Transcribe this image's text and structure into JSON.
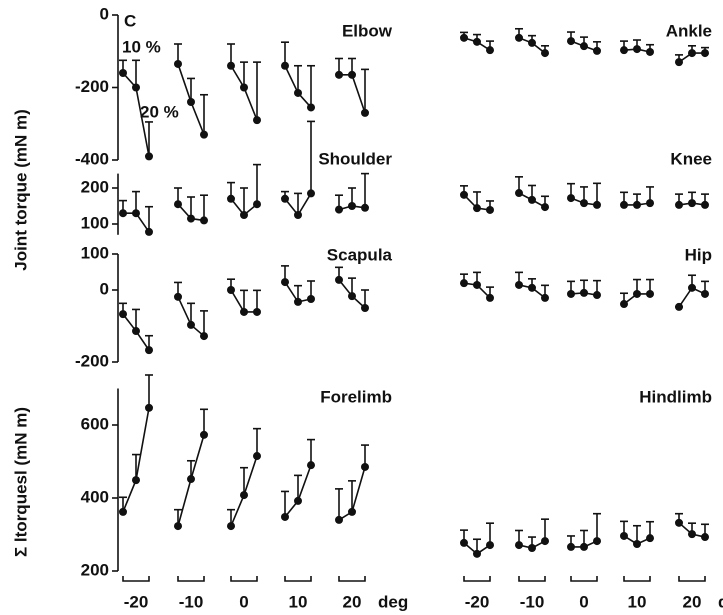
{
  "figure": {
    "label": "C",
    "ylabel_joint": "Joint torque (mN m)",
    "ylabel_sum": "Σ ltorquesl (mN m)",
    "annotations": [
      "10 %",
      "20 %"
    ]
  },
  "chart_data": [
    {
      "type": "line",
      "title": "Elbow",
      "ylim": [
        -400,
        0
      ],
      "yticks": [
        -400,
        -200,
        0
      ],
      "groups": [
        [
          -160,
          -200,
          -390
        ],
        [
          -135,
          -240,
          -330
        ],
        [
          -140,
          -200,
          -290
        ],
        [
          -140,
          -215,
          -255
        ],
        [
          -165,
          -165,
          -270
        ]
      ],
      "errors": [
        [
          35,
          75,
          95
        ],
        [
          55,
          65,
          110
        ],
        [
          60,
          70,
          160
        ],
        [
          65,
          75,
          115
        ],
        [
          45,
          45,
          120
        ]
      ]
    },
    {
      "type": "line",
      "title": "Shoulder",
      "ylim": [
        70,
        240
      ],
      "yticks": [
        100,
        200
      ],
      "groups": [
        [
          130,
          130,
          78
        ],
        [
          155,
          115,
          110
        ],
        [
          170,
          125,
          155
        ],
        [
          170,
          125,
          185
        ],
        [
          140,
          150,
          145
        ]
      ],
      "errors": [
        [
          35,
          60,
          70
        ],
        [
          45,
          60,
          70
        ],
        [
          45,
          75,
          110
        ],
        [
          20,
          60,
          200
        ],
        [
          40,
          50,
          95
        ]
      ]
    },
    {
      "type": "line",
      "title": "Scapula",
      "ylim": [
        -200,
        100
      ],
      "yticks": [
        -200,
        0,
        100
      ],
      "groups": [
        [
          -67,
          -114,
          -167
        ],
        [
          -19,
          -97,
          -128
        ],
        [
          0,
          -61,
          -61
        ],
        [
          22,
          -33,
          -25
        ],
        [
          28,
          -17,
          -50
        ]
      ],
      "errors": [
        [
          30,
          60,
          40
        ],
        [
          40,
          60,
          70
        ],
        [
          30,
          60,
          60
        ],
        [
          45,
          45,
          50
        ],
        [
          35,
          50,
          50
        ]
      ]
    },
    {
      "type": "line",
      "title": "Forelimb",
      "ylim": [
        200,
        700
      ],
      "yticks": [
        200,
        400,
        600
      ],
      "categories": [
        "-20",
        "-10",
        "0",
        "10",
        "20"
      ],
      "xlabel": "deg",
      "groups": [
        [
          362,
          449,
          647
        ],
        [
          323,
          452,
          573
        ],
        [
          323,
          408,
          515
        ],
        [
          348,
          392,
          490
        ],
        [
          340,
          362,
          485
        ]
      ],
      "errors": [
        [
          40,
          70,
          90
        ],
        [
          45,
          50,
          70
        ],
        [
          45,
          75,
          75
        ],
        [
          70,
          70,
          70
        ],
        [
          85,
          85,
          60
        ]
      ]
    },
    {
      "type": "line",
      "title": "Ankle",
      "ylim": [
        -400,
        0
      ],
      "groups": [
        [
          -63,
          -74,
          -97
        ],
        [
          -63,
          -77,
          -105
        ],
        [
          -72,
          -86,
          -99
        ],
        [
          -97,
          -94,
          -102
        ],
        [
          -130,
          -105,
          -105
        ]
      ],
      "errors": [
        [
          15,
          20,
          25
        ],
        [
          25,
          20,
          20
        ],
        [
          25,
          25,
          25
        ],
        [
          25,
          25,
          20
        ],
        [
          20,
          20,
          15
        ]
      ]
    },
    {
      "type": "line",
      "title": "Knee",
      "ylim": [
        70,
        240
      ],
      "groups": [
        [
          181,
          144,
          139
        ],
        [
          186,
          167,
          147
        ],
        [
          172,
          158,
          153
        ],
        [
          153,
          153,
          158
        ],
        [
          153,
          158,
          153
        ]
      ],
      "errors": [
        [
          25,
          45,
          25
        ],
        [
          45,
          40,
          30
        ],
        [
          40,
          45,
          60
        ],
        [
          35,
          30,
          45
        ],
        [
          30,
          30,
          30
        ]
      ]
    },
    {
      "type": "line",
      "title": "Hip",
      "ylim": [
        -200,
        100
      ],
      "groups": [
        [
          19,
          14,
          -22
        ],
        [
          14,
          6,
          -22
        ],
        [
          -11,
          -8,
          -14
        ],
        [
          -39,
          -11,
          -11
        ],
        [
          -47,
          6,
          -11
        ]
      ],
      "errors": [
        [
          25,
          35,
          30
        ],
        [
          35,
          25,
          35
        ],
        [
          35,
          35,
          40
        ],
        [
          30,
          40,
          40
        ],
        [
          0,
          35,
          35
        ]
      ]
    },
    {
      "type": "line",
      "title": "Hindlimb",
      "ylim": [
        200,
        700
      ],
      "categories": [
        "-20",
        "-10",
        "0",
        "10",
        "20"
      ],
      "xlabel": "deg",
      "groups": [
        [
          277,
          247,
          271
        ],
        [
          271,
          263,
          282
        ],
        [
          266,
          266,
          282
        ],
        [
          296,
          274,
          290
        ],
        [
          332,
          301,
          293
        ]
      ],
      "errors": [
        [
          35,
          40,
          60
        ],
        [
          40,
          30,
          60
        ],
        [
          30,
          45,
          75
        ],
        [
          40,
          50,
          45
        ],
        [
          25,
          30,
          35
        ]
      ]
    }
  ]
}
